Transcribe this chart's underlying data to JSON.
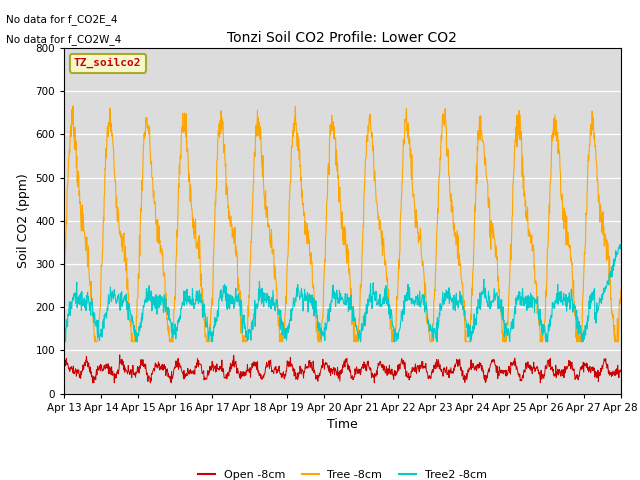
{
  "title": "Tonzi Soil CO2 Profile: Lower CO2",
  "xlabel": "Time",
  "ylabel": "Soil CO2 (ppm)",
  "ylim": [
    0,
    800
  ],
  "yticks": [
    0,
    100,
    200,
    300,
    400,
    500,
    600,
    700,
    800
  ],
  "annotations": [
    "No data for f_CO2E_4",
    "No data for f_CO2W_4"
  ],
  "legend_label": "TZ_soilco2",
  "legend_bg": "#FFFFCC",
  "legend_border": "#8B8B00",
  "series": {
    "open": {
      "label": "Open -8cm",
      "color": "#CC0000"
    },
    "tree": {
      "label": "Tree -8cm",
      "color": "#FFA500"
    },
    "tree2": {
      "label": "Tree2 -8cm",
      "color": "#00CCCC"
    }
  },
  "xtick_labels": [
    "Apr 13",
    "Apr 14",
    "Apr 15",
    "Apr 16",
    "Apr 17",
    "Apr 18",
    "Apr 19",
    "Apr 20",
    "Apr 21",
    "Apr 22",
    "Apr 23",
    "Apr 24",
    "Apr 25",
    "Apr 26",
    "Apr 27",
    "Apr 28"
  ],
  "plot_bg": "#DCDCDC",
  "fig_bg": "#FFFFFF"
}
